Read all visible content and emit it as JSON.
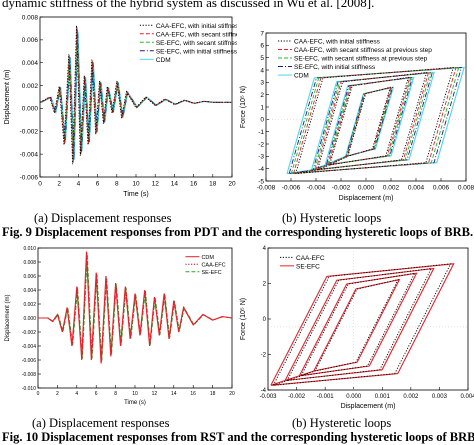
{
  "top_text": "dynamic stiffness of the hybrid system as discussed in Wu et al. [2008].",
  "fig9": {
    "caption": "Fig. 9 Displacement responses from PDT and the corresponding hysteretic loops of BRB.",
    "sub_a": "(a) Displacement responses",
    "sub_b": "(b) Hysteretic loops"
  },
  "fig10": {
    "caption": "Fig. 10 Displacement responses from RST and the corresponding hysteretic loops of BRB.",
    "sub_a": "(a) Displacement responses",
    "sub_b": "(b) Hysteretic loops"
  },
  "chart_data": [
    {
      "type": "line",
      "xlabel": "Time (s)",
      "ylabel": "Displacement (m)",
      "xlim": [
        0,
        20
      ],
      "ylim": [
        -0.007,
        0.008
      ],
      "xticks": [
        "0",
        "2",
        "4",
        "6",
        "8",
        "10",
        "12",
        "14",
        "16",
        "18",
        "20"
      ],
      "yticks": [
        "0.008",
        "0.006",
        "0.004",
        "0.002",
        "0.000",
        "-0.002",
        "-0.004",
        "-0.006"
      ],
      "legend_placement": "top-right",
      "series": [
        {
          "name": "CAA-EFC, with initial stiffness",
          "color": "#000000",
          "style": "dotted"
        },
        {
          "name": "CAA-EFC, with secant stiffness at previous step",
          "color": "#e8202a",
          "style": "dashed"
        },
        {
          "name": "SE-EFC, with secant stiffness at previous step",
          "color": "#22bb22",
          "style": "dashed"
        },
        {
          "name": "SE-EFC, with initial stiffness",
          "color": "#1a1a8c",
          "style": "dashdot"
        },
        {
          "name": "CDM",
          "color": "#4fd6e8",
          "style": "solid"
        }
      ],
      "x": [
        0,
        1,
        1.5,
        2,
        2.5,
        3,
        3.4,
        3.8,
        4.2,
        4.6,
        5,
        5.4,
        5.8,
        6.2,
        6.6,
        7,
        7.5,
        8,
        8.5,
        9,
        10,
        11,
        12,
        13,
        14,
        15,
        16,
        17,
        18,
        19,
        20
      ],
      "y": [
        0,
        0.0005,
        -0.001,
        0.0015,
        -0.004,
        0.0045,
        -0.0058,
        0.0072,
        -0.005,
        0.0025,
        -0.004,
        0.004,
        -0.003,
        0.002,
        -0.002,
        0.0015,
        -0.001,
        0.002,
        -0.0015,
        0.001,
        -0.0005,
        0.0005,
        -0.0003,
        0.0003,
        -0.0002,
        0.0002,
        -0.0001,
        0.0001,
        0,
        0,
        0
      ]
    },
    {
      "type": "line",
      "xlabel": "Displacement (m)",
      "ylabel": "Force (10⁵ N)",
      "xlim": [
        -0.008,
        0.008
      ],
      "ylim": [
        -5,
        7
      ],
      "xticks": [
        "-0.008",
        "-0.006",
        "-0.004",
        "-0.002",
        "0.000",
        "0.002",
        "0.004",
        "0.006",
        "0.008"
      ],
      "yticks": [
        "7",
        "6",
        "5",
        "4",
        "3",
        "2",
        "1",
        "0",
        "-1",
        "-2",
        "-3",
        "-4",
        "-5"
      ],
      "legend_placement": "top-left",
      "series": [
        {
          "name": "CAA-EFC, with initial stiffness",
          "color": "#000000",
          "style": "dotted"
        },
        {
          "name": "CAA-EFC, with secant stiffness at previous step",
          "color": "#e8202a",
          "style": "dashed"
        },
        {
          "name": "SE-EFC, with secant stiffness at previous step",
          "color": "#22bb22",
          "style": "dashed"
        },
        {
          "name": "SE-EFC, with initial stiffness",
          "color": "#1a1a8c",
          "style": "dashdot"
        },
        {
          "name": "CDM",
          "color": "#4fd6e8",
          "style": "solid"
        }
      ],
      "loops": [
        {
          "dmax": 0.0072,
          "dmin": -0.0058,
          "fmax": 4.2,
          "fmin": -4.4
        },
        {
          "dmax": 0.005,
          "dmin": -0.004,
          "fmax": 3.8,
          "fmin": -4.1
        },
        {
          "dmax": 0.0035,
          "dmin": -0.003,
          "fmax": 3.4,
          "fmin": -3.7
        },
        {
          "dmax": 0.002,
          "dmin": -0.0015,
          "fmax": 2.6,
          "fmin": -3.0
        }
      ]
    },
    {
      "type": "line",
      "xlabel": "Time (s)",
      "ylabel": "Displacement (m)",
      "xlim": [
        0,
        20
      ],
      "ylim": [
        -0.01,
        0.01
      ],
      "xticks": [
        "0",
        "2",
        "4",
        "6",
        "8",
        "10",
        "12",
        "14",
        "16",
        "18",
        "20"
      ],
      "yticks": [
        "0.010",
        "0.008",
        "0.006",
        "0.004",
        "0.002",
        "0.000",
        "-0.002",
        "-0.004",
        "-0.006",
        "-0.008",
        "-0.010"
      ],
      "legend_placement": "top-right",
      "series": [
        {
          "name": "CDM",
          "color": "#e8202a",
          "style": "solid"
        },
        {
          "name": "CAA-EFC",
          "color": "#aa1111",
          "style": "dotted"
        },
        {
          "name": "SE-EFC",
          "color": "#22aa22",
          "style": "dashed"
        }
      ],
      "x": [
        0,
        1,
        1.5,
        2,
        2.5,
        3,
        3.5,
        4,
        4.5,
        5,
        5.5,
        6,
        6.5,
        7,
        7.5,
        8,
        8.5,
        9,
        9.5,
        10,
        10.5,
        11,
        11.5,
        12,
        12.5,
        13,
        13.5,
        14,
        14.5,
        15,
        16,
        17,
        18,
        19,
        20
      ],
      "y": [
        0,
        0,
        -0.0005,
        0.0005,
        -0.002,
        0.0015,
        -0.004,
        0.0045,
        -0.006,
        0.0095,
        -0.006,
        0.0065,
        -0.0065,
        0.006,
        -0.0055,
        0.005,
        -0.004,
        0.0045,
        -0.003,
        0.0035,
        -0.0025,
        0.004,
        -0.004,
        0.003,
        -0.0025,
        0.0035,
        -0.003,
        0.0025,
        -0.002,
        0.0015,
        -0.001,
        0.0005,
        -0.0003,
        0.0002,
        0
      ]
    },
    {
      "type": "line",
      "xlabel": "Displacement (m)",
      "ylabel": "Force (10⁵ N)",
      "xlim": [
        -0.003,
        0.004
      ],
      "ylim": [
        -4,
        5
      ],
      "xticks": [
        "-0.003",
        "-0.002",
        "-0.001",
        "0.000",
        "0.001",
        "0.002",
        "0.003",
        "0.004"
      ],
      "yticks": [
        "4",
        "2",
        "0",
        "-2",
        "-4"
      ],
      "legend_placement": "top-left",
      "series": [
        {
          "name": "CAA-EFC",
          "color": "#000000",
          "style": "dotted"
        },
        {
          "name": "SE-EFC",
          "color": "#e8202a",
          "style": "solid"
        }
      ],
      "loops": [
        {
          "dmax": 0.0035,
          "dmin": -0.0029,
          "fmax": 4.0,
          "fmin": -3.7
        },
        {
          "dmax": 0.0028,
          "dmin": -0.0024,
          "fmax": 3.7,
          "fmin": -3.4
        },
        {
          "dmax": 0.0022,
          "dmin": -0.0019,
          "fmax": 3.4,
          "fmin": -3.1
        },
        {
          "dmax": 0.0016,
          "dmin": -0.0014,
          "fmax": 3.0,
          "fmin": -2.8
        }
      ]
    }
  ]
}
